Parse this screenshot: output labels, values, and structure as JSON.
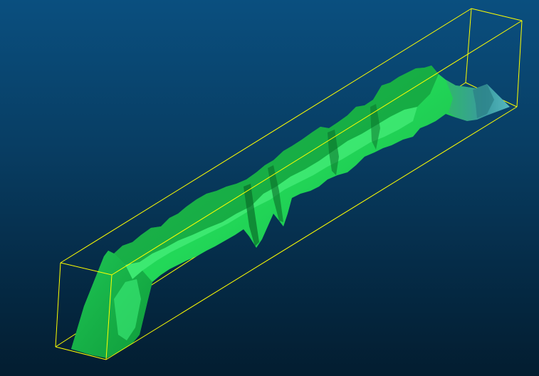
{
  "viewport": {
    "background_top": "#0a4f7f",
    "background_bottom": "#031d30"
  },
  "bounding_box": {
    "color": "#ffff00"
  },
  "surface": {
    "primary_color": "#22dd55",
    "dark_color": "#0a8a33",
    "light_color": "#44f07a",
    "tip_color": "#3aa6a0"
  }
}
